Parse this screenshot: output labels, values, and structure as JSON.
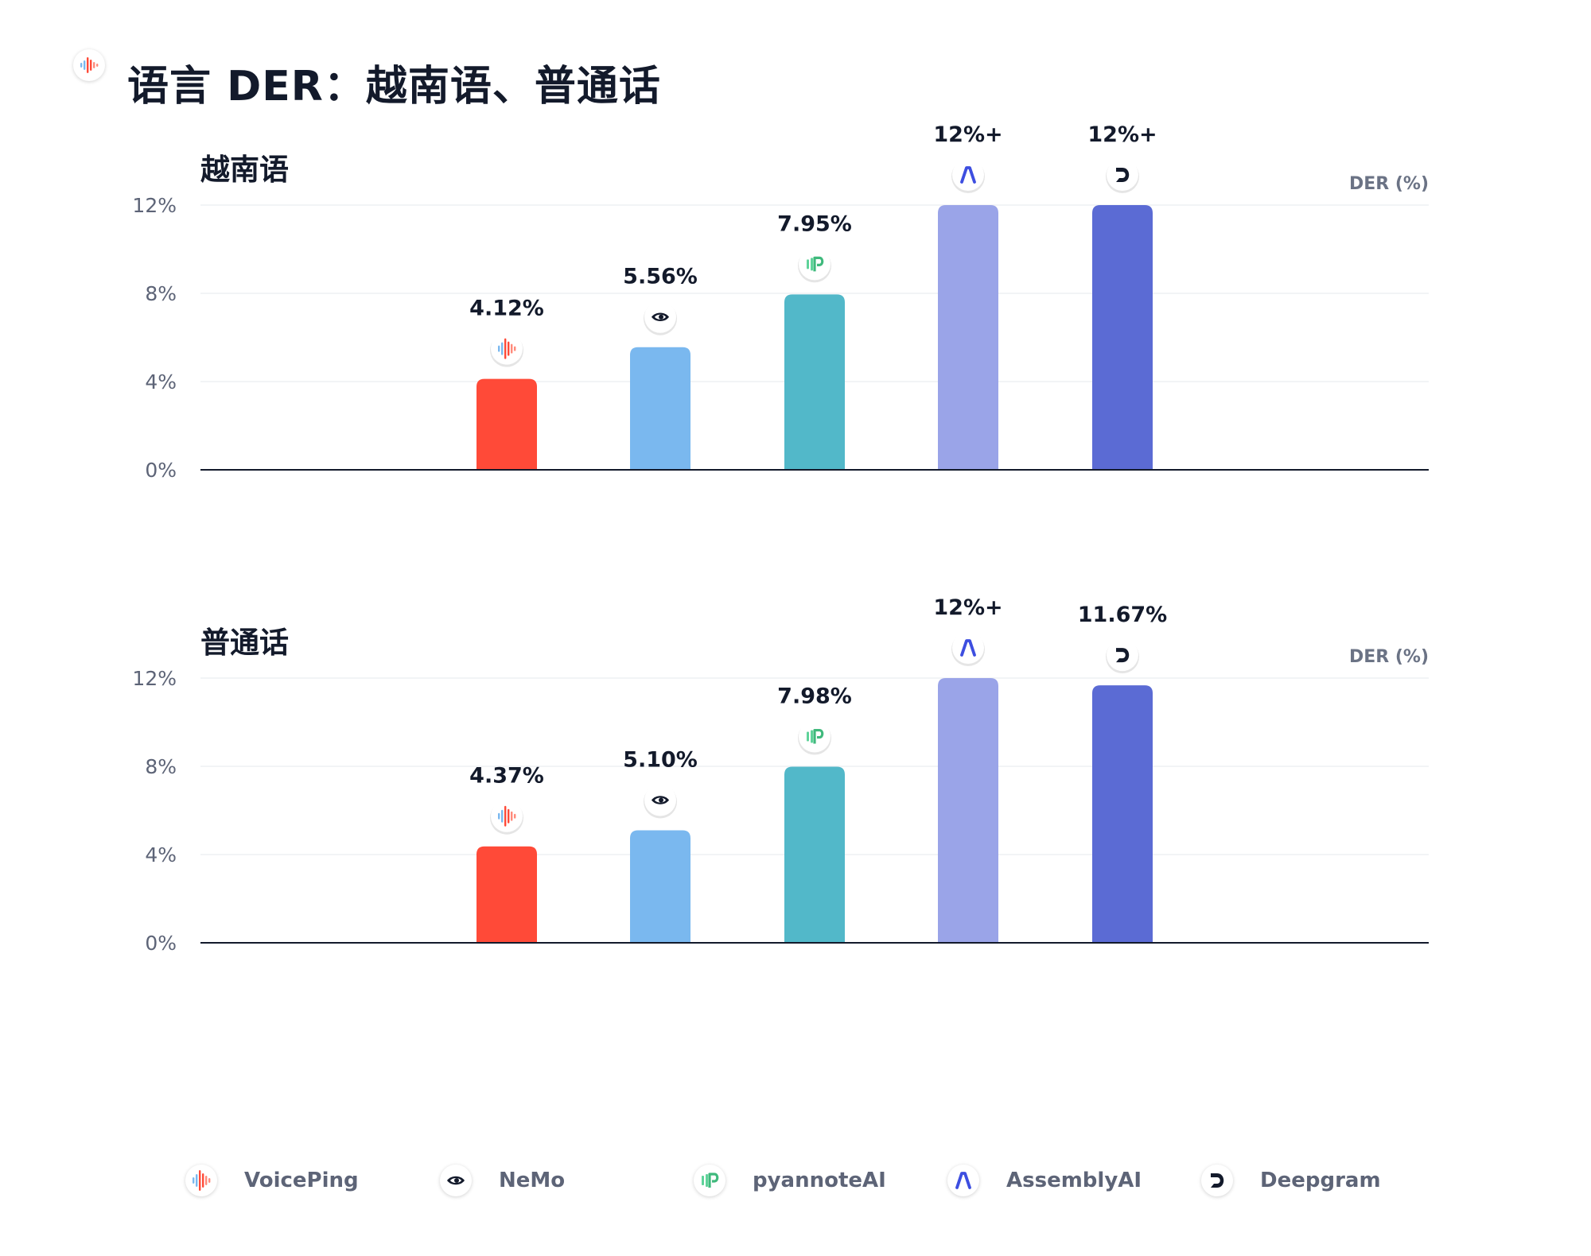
{
  "title": "语言 DER：越南语、普通话",
  "unit_label": "DER (%)",
  "providers": [
    {
      "name": "VoicePing",
      "color": "#ff4a38",
      "icon": "voiceping-waveform-icon"
    },
    {
      "name": "NeMo",
      "color": "#7ab8ef",
      "icon": "nvidia-eye-icon"
    },
    {
      "name": "pyannoteAI",
      "color": "#52b8c9",
      "icon": "pyannote-p-icon"
    },
    {
      "name": "AssemblyAI",
      "color": "#9aa4e8",
      "icon": "assemblyai-lambda-icon"
    },
    {
      "name": "Deepgram",
      "color": "#5b6bd4",
      "icon": "deepgram-d-icon"
    }
  ],
  "chart_data": [
    {
      "type": "bar",
      "title": "越南语",
      "ylabel": "DER (%)",
      "ylim": [
        0,
        12
      ],
      "yticks": [
        "0%",
        "4%",
        "8%",
        "12%"
      ],
      "grid": true,
      "categories": [
        "VoicePing",
        "NeMo",
        "pyannoteAI",
        "AssemblyAI",
        "Deepgram"
      ],
      "values": [
        4.12,
        5.56,
        7.95,
        12,
        12
      ],
      "data_labels": [
        "4.12%",
        "5.56%",
        "7.95%",
        "12%+",
        "12%+"
      ]
    },
    {
      "type": "bar",
      "title": "普通话",
      "ylabel": "DER (%)",
      "ylim": [
        0,
        12
      ],
      "yticks": [
        "0%",
        "4%",
        "8%",
        "12%"
      ],
      "grid": true,
      "categories": [
        "VoicePing",
        "NeMo",
        "pyannoteAI",
        "AssemblyAI",
        "Deepgram"
      ],
      "values": [
        4.37,
        5.1,
        7.98,
        12,
        11.67
      ],
      "data_labels": [
        "4.37%",
        "5.10%",
        "7.98%",
        "12%+",
        "11.67%"
      ]
    }
  ]
}
